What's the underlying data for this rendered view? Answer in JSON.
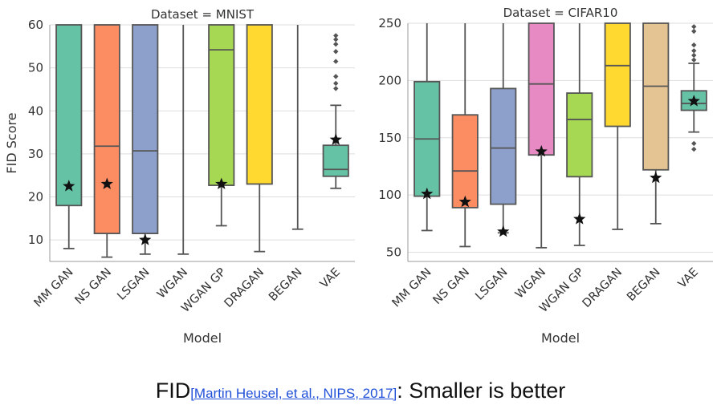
{
  "chart_data": [
    {
      "type": "box",
      "title": "Dataset = MNIST",
      "xlabel": "Model",
      "ylabel": "FID Score",
      "ylim": [
        5,
        60
      ],
      "yticks": [
        10,
        20,
        30,
        40,
        50,
        60
      ],
      "categories": [
        "MM GAN",
        "NS GAN",
        "LSGAN",
        "WGAN",
        "WGAN GP",
        "DRAGAN",
        "BEGAN",
        "VAE"
      ],
      "boxes": [
        {
          "category": "MM GAN",
          "whisker_low": 8,
          "q1": 18,
          "median": 60,
          "q3": 60,
          "whisker_high": 60,
          "star": 22.5,
          "color": "#66c2a5",
          "outliers": []
        },
        {
          "category": "NS GAN",
          "whisker_low": 6,
          "q1": 11.5,
          "median": 31.8,
          "q3": 60,
          "whisker_high": 60,
          "star": 23,
          "color": "#fc8d62",
          "outliers": []
        },
        {
          "category": "LSGAN",
          "whisker_low": 6.7,
          "q1": 11.5,
          "median": 30.7,
          "q3": 60,
          "whisker_high": 60,
          "star": 10,
          "color": "#8da0cb",
          "outliers": []
        },
        {
          "category": "WGAN",
          "whisker_low": 6.7,
          "q1": null,
          "median": null,
          "q3": null,
          "whisker_high": 60,
          "star": null,
          "color": "#e78ac3",
          "outliers": []
        },
        {
          "category": "WGAN GP",
          "whisker_low": 13.3,
          "q1": 22.7,
          "median": 54.2,
          "q3": 60,
          "whisker_high": 60,
          "star": 23,
          "color": "#a6d854",
          "outliers": []
        },
        {
          "category": "DRAGAN",
          "whisker_low": 7.3,
          "q1": 23,
          "median": 60,
          "q3": 60,
          "whisker_high": 60,
          "star": null,
          "color": "#ffd92f",
          "outliers": []
        },
        {
          "category": "BEGAN",
          "whisker_low": 12.5,
          "q1": null,
          "median": null,
          "q3": null,
          "whisker_high": 60,
          "star": null,
          "color": "#e5c494",
          "outliers": []
        },
        {
          "category": "VAE",
          "whisker_low": 22,
          "q1": 24.8,
          "median": 26.4,
          "q3": 32,
          "whisker_high": 41.3,
          "star": 33.3,
          "color": "#66c2a5",
          "outliers": [
            45.2,
            46.4,
            48,
            51.5,
            53.8,
            55.5,
            56.6,
            57.5
          ]
        }
      ]
    },
    {
      "type": "box",
      "title": "Dataset = CIFAR10",
      "xlabel": "Model",
      "ylabel": "",
      "ylim": [
        42,
        250
      ],
      "yticks": [
        50,
        100,
        150,
        200,
        250
      ],
      "categories": [
        "MM GAN",
        "NS GAN",
        "LSGAN",
        "WGAN",
        "WGAN GP",
        "DRAGAN",
        "BEGAN",
        "VAE"
      ],
      "boxes": [
        {
          "category": "MM GAN",
          "whisker_low": 69,
          "q1": 99,
          "median": 149,
          "q3": 199,
          "whisker_high": 250,
          "star": 101,
          "color": "#66c2a5",
          "outliers": []
        },
        {
          "category": "NS GAN",
          "whisker_low": 55,
          "q1": 89,
          "median": 121,
          "q3": 170,
          "whisker_high": 250,
          "star": 94,
          "color": "#fc8d62",
          "outliers": []
        },
        {
          "category": "LSGAN",
          "whisker_low": 67,
          "q1": 92,
          "median": 141,
          "q3": 193,
          "whisker_high": 250,
          "star": 68,
          "color": "#8da0cb",
          "outliers": []
        },
        {
          "category": "WGAN",
          "whisker_low": 54,
          "q1": 135,
          "median": 197,
          "q3": 250,
          "whisker_high": 250,
          "star": 138,
          "color": "#e78ac3",
          "outliers": []
        },
        {
          "category": "WGAN GP",
          "whisker_low": 56,
          "q1": 116,
          "median": 166,
          "q3": 189,
          "whisker_high": 250,
          "star": 79,
          "color": "#a6d854",
          "outliers": []
        },
        {
          "category": "DRAGAN",
          "whisker_low": 70,
          "q1": 160,
          "median": 213,
          "q3": 250,
          "whisker_high": 250,
          "star": null,
          "color": "#ffd92f",
          "outliers": []
        },
        {
          "category": "BEGAN",
          "whisker_low": 75,
          "q1": 122,
          "median": 195,
          "q3": 250,
          "whisker_high": 250,
          "star": 115,
          "color": "#e5c494",
          "outliers": []
        },
        {
          "category": "VAE",
          "whisker_low": 155,
          "q1": 174,
          "median": 180,
          "q3": 191,
          "whisker_high": 215,
          "star": 182,
          "color": "#66c2a5",
          "outliers": [
            140,
            145,
            218,
            222,
            226,
            231,
            243,
            247
          ]
        }
      ]
    }
  ],
  "caption": {
    "prefix": "FID",
    "reference": "[Martin Heusel, et al., NIPS, 2017]",
    "suffix": ": Smaller is better"
  },
  "colors": {
    "grid": "#dddddd",
    "line": "#555555",
    "axis": "#999999",
    "star": "#111111"
  }
}
